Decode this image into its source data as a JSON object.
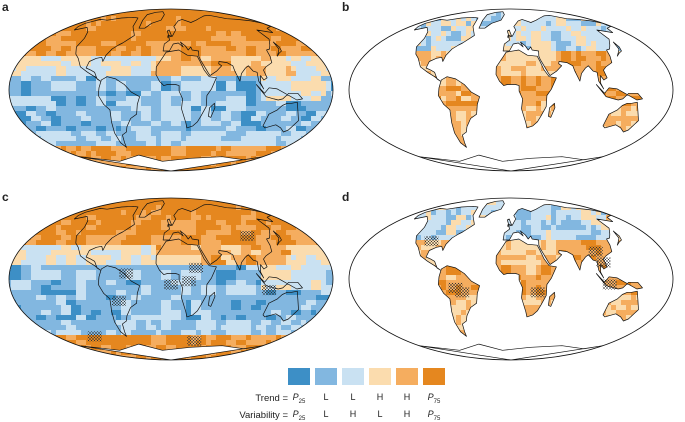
{
  "panels": [
    {
      "id": "a",
      "label": "a",
      "mode": "full",
      "hatch": false
    },
    {
      "id": "b",
      "label": "b",
      "mode": "land",
      "hatch": false
    },
    {
      "id": "c",
      "label": "c",
      "mode": "full",
      "hatch": true
    },
    {
      "id": "d",
      "label": "d",
      "mode": "land",
      "hatch": true
    }
  ],
  "legend": {
    "trend_label": "Trend =",
    "variability_label": "Variability =",
    "colors": [
      "#3d8fc6",
      "#82b7e0",
      "#c9e1f2",
      "#fbdcae",
      "#f5ad5f",
      "#e5871f"
    ],
    "trend_values": [
      "P25",
      "L",
      "L",
      "H",
      "H",
      "P75"
    ],
    "variability_values": [
      "P25",
      "L",
      "H",
      "L",
      "H",
      "P75"
    ]
  }
}
